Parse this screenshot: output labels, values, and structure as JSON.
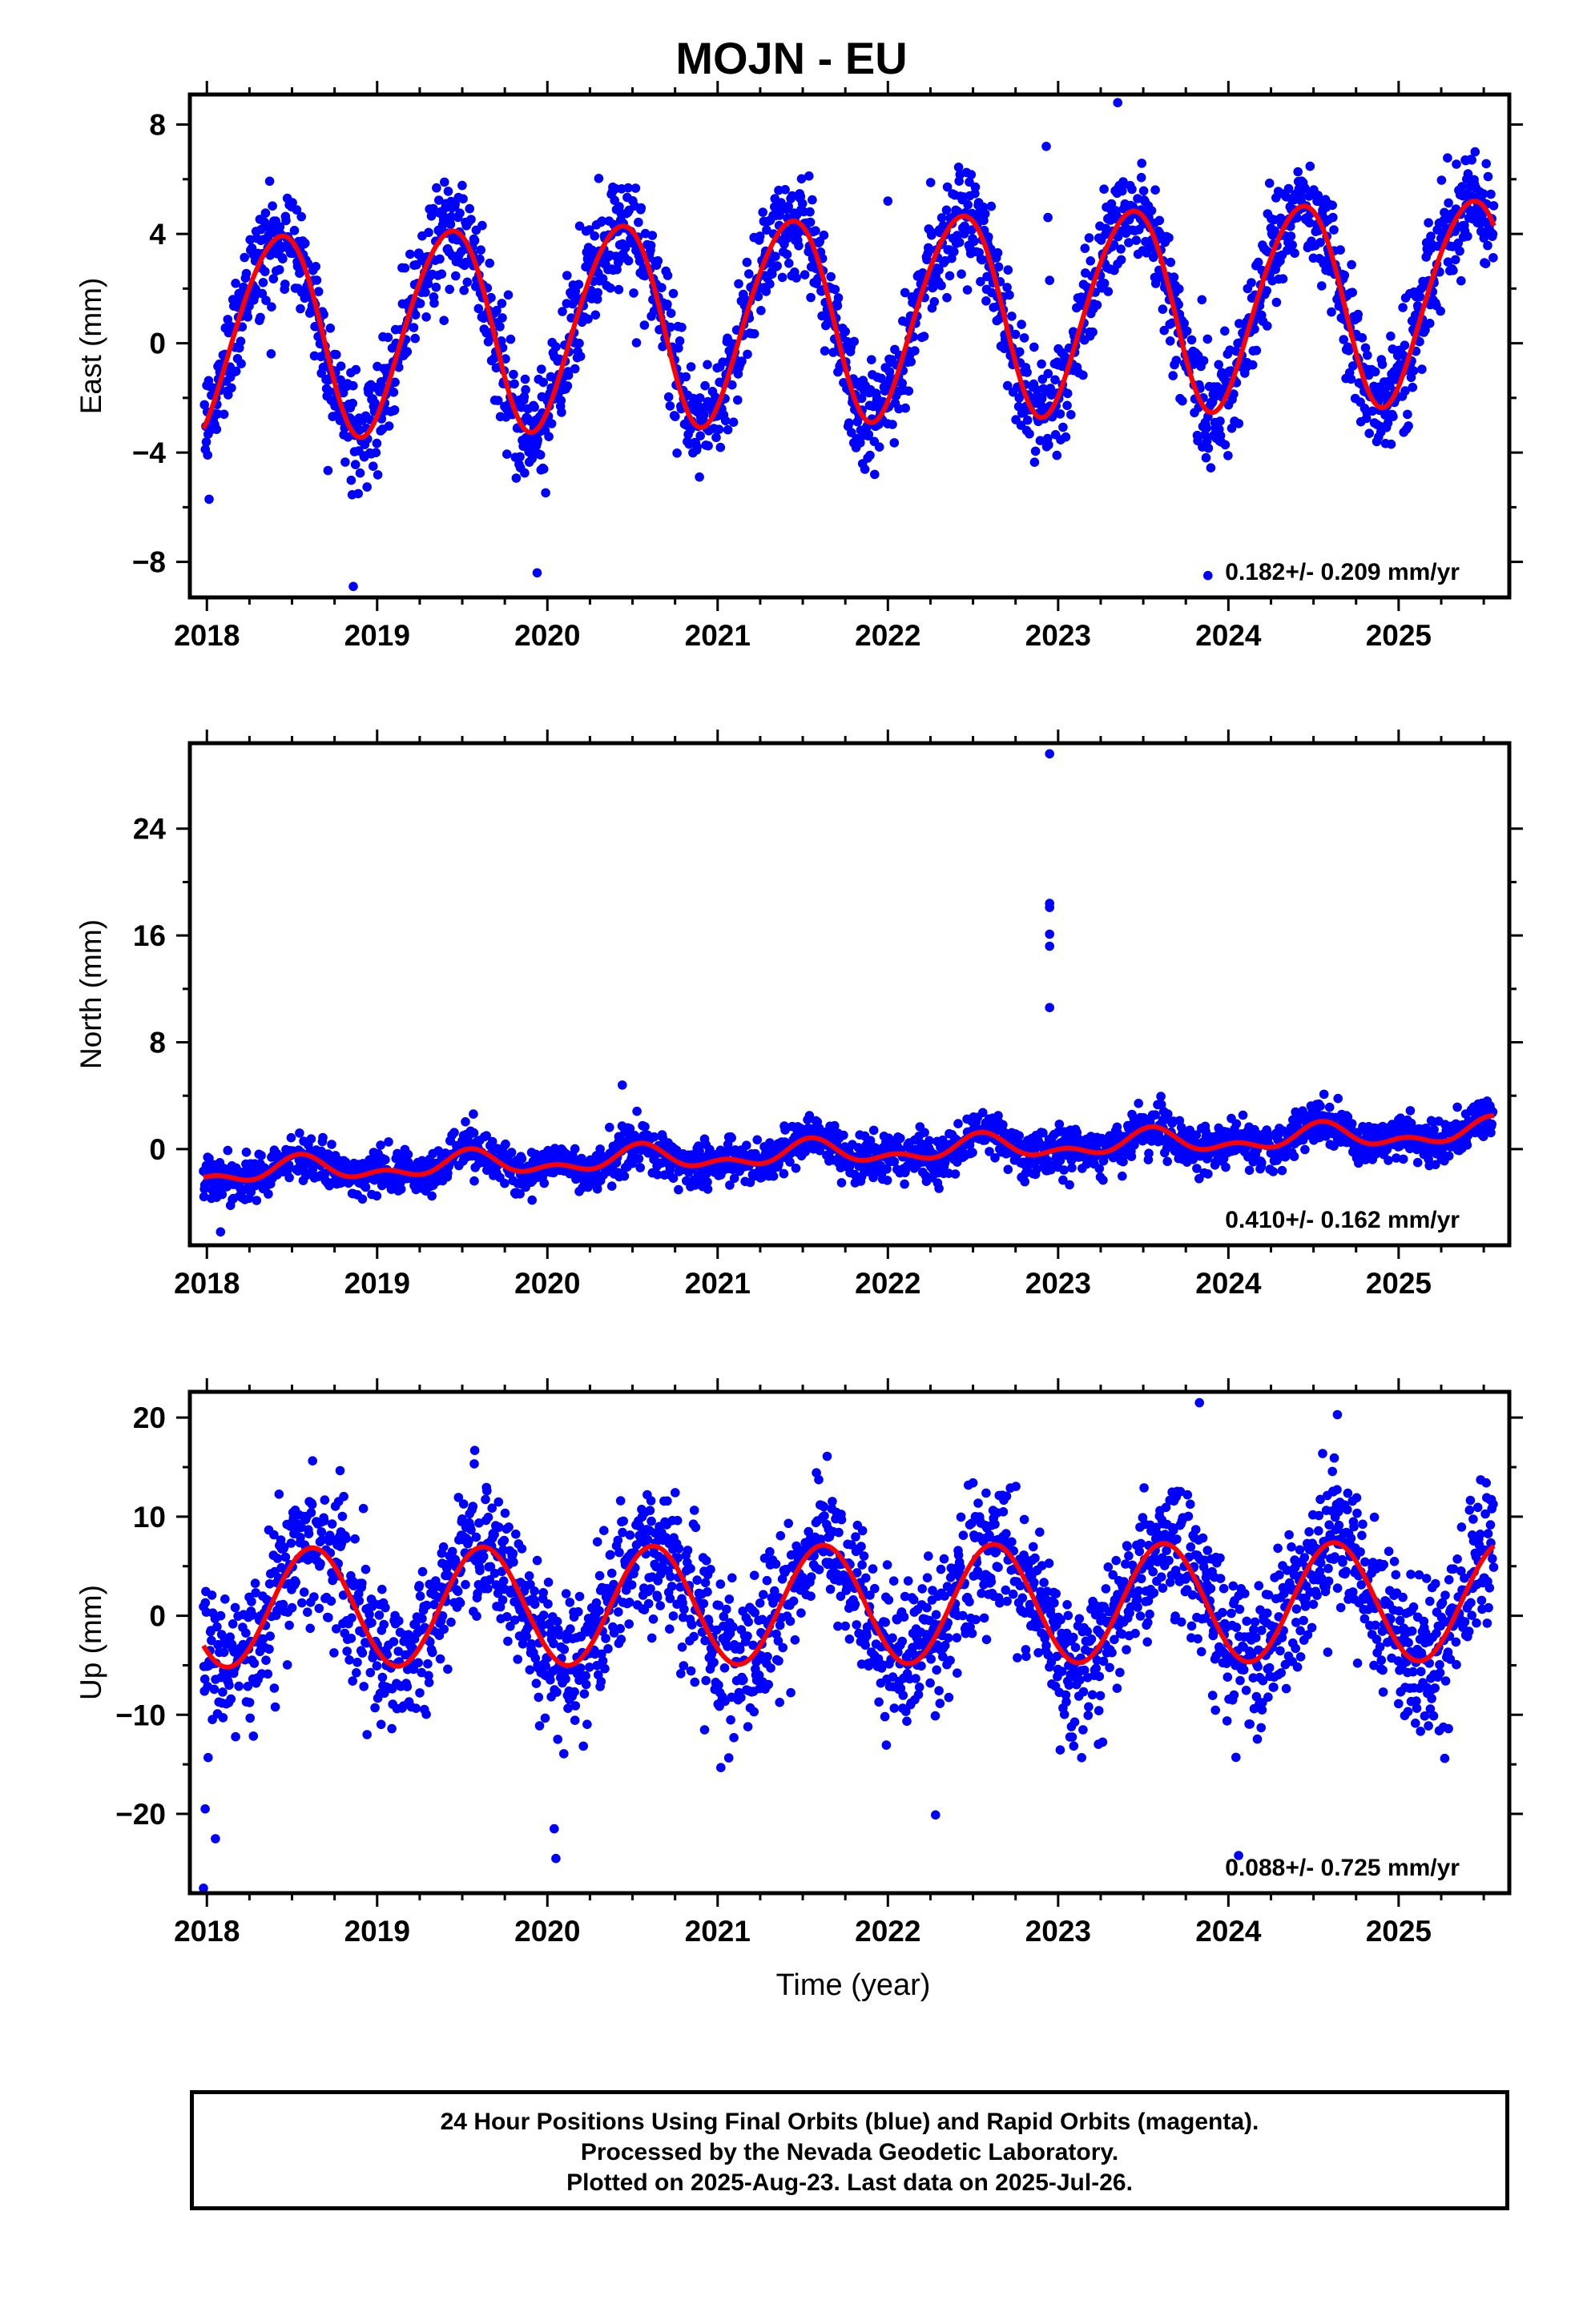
{
  "title": "MOJN - EU",
  "colors": {
    "final_orbits": "#0000ff",
    "rapid_orbits": "#ff00ff",
    "model": "#ff0000"
  },
  "chart_data": [
    {
      "type": "scatter",
      "component": "east",
      "ylabel": "East (mm)",
      "xlim": [
        2017.9,
        2025.65
      ],
      "ylim": [
        -9.3,
        9.1
      ],
      "xticks": [
        2018,
        2019,
        2020,
        2021,
        2022,
        2023,
        2024,
        2025
      ],
      "yticks": [
        8,
        4,
        0,
        -4,
        -8
      ],
      "rate_label": "0.182+/- 0.209 mm/yr",
      "model": {
        "rate_mm_per_yr": 0.182,
        "offset_at_2018": 0.3,
        "annual_amplitude": 3.7,
        "annual_peak": 0.42,
        "semiannual_amplitude": 0.3,
        "semiannual_peak": 0.1
      },
      "scatter_sigma_mm": 1.0,
      "outliers": [
        [
          2022.93,
          7.2
        ],
        [
          2022.94,
          4.6
        ],
        [
          2022.95,
          2.3
        ],
        [
          2023.35,
          8.8
        ],
        [
          2022.0,
          5.2
        ],
        [
          2023.88,
          -8.5
        ],
        [
          2018.86,
          -8.9
        ],
        [
          2019.94,
          -8.4
        ]
      ]
    },
    {
      "type": "scatter",
      "component": "north",
      "ylabel": "North (mm)",
      "xlim": [
        2017.9,
        2025.65
      ],
      "ylim": [
        -7.2,
        30.4
      ],
      "xticks": [
        2018,
        2019,
        2020,
        2021,
        2022,
        2023,
        2024,
        2025
      ],
      "yticks": [
        24,
        16,
        8,
        0
      ],
      "rate_label": "0.410+/- 0.162 mm/yr",
      "model": {
        "rate_mm_per_yr": 0.41,
        "offset_at_2018": -1.8,
        "annual_amplitude": 0.7,
        "annual_peak": 0.55,
        "semiannual_amplitude": 0.5,
        "semiannual_peak": 0.05
      },
      "scatter_sigma_mm": 0.8,
      "outliers": [
        [
          2022.95,
          29.6
        ],
        [
          2022.95,
          18.4
        ],
        [
          2022.95,
          18.1
        ],
        [
          2022.95,
          16.1
        ],
        [
          2022.95,
          15.2
        ],
        [
          2022.95,
          10.6
        ],
        [
          2020.44,
          4.8
        ],
        [
          2018.08,
          -6.2
        ]
      ]
    },
    {
      "type": "scatter",
      "component": "up",
      "ylabel": "Up (mm)",
      "xlim": [
        2017.9,
        2025.65
      ],
      "ylim": [
        -28,
        22.6
      ],
      "xticks": [
        2018,
        2019,
        2020,
        2021,
        2022,
        2023,
        2024,
        2025
      ],
      "yticks": [
        20,
        10,
        0,
        -10,
        -20
      ],
      "rate_label": "0.088+/- 0.725 mm/yr",
      "model": {
        "rate_mm_per_yr": 0.088,
        "offset_at_2018": 0.8,
        "annual_amplitude": 6.0,
        "annual_peak": 0.62,
        "semiannual_amplitude": 0.0,
        "semiannual_peak": 0.0
      },
      "scatter_sigma_mm": 3.6,
      "outliers": [
        [
          2017.98,
          -27.5
        ],
        [
          2017.99,
          -19.5
        ],
        [
          2018.05,
          -22.5
        ],
        [
          2020.04,
          -21.5
        ],
        [
          2020.05,
          -24.5
        ],
        [
          2023.83,
          21.5
        ],
        [
          2024.06,
          -24.2
        ],
        [
          2024.64,
          20.3
        ],
        [
          2022.28,
          -20.1
        ]
      ]
    }
  ],
  "xlabel": "Time (year)",
  "footer": {
    "line1": "24 Hour Positions Using Final Orbits (blue) and Rapid Orbits (magenta).",
    "line2": "Processed by the Nevada Geodetic Laboratory.",
    "line3": "Plotted on 2025-Aug-23. Last data on 2025-Jul-26."
  }
}
